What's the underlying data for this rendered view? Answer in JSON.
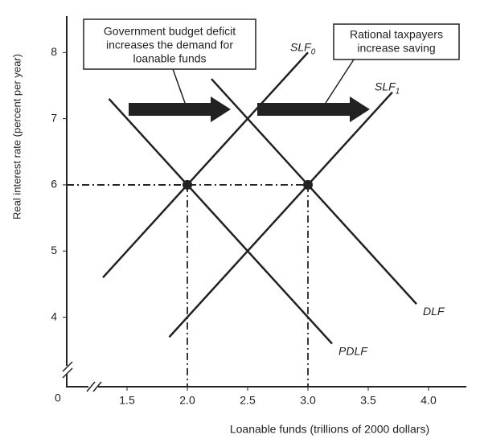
{
  "chart_data": {
    "type": "line",
    "xlabel": "Loanable funds (trillions of 2000 dollars)",
    "ylabel": "Real interest rate (percent per year)",
    "origin_label": "0",
    "xlim": [
      1,
      4.3
    ],
    "ylim": [
      2.95,
      8.55
    ],
    "xticks": [
      1.5,
      {
        "value": 2,
        "label": "2.0"
      },
      2.5,
      {
        "value": 3,
        "label": "3.0"
      },
      3.5,
      {
        "value": 4,
        "label": "4.0"
      }
    ],
    "yticks": [
      4,
      5,
      6,
      7,
      8
    ],
    "color": "#222222",
    "series": [
      {
        "name": "SLF",
        "subscript": "0",
        "x": [
          1.3,
          3.0
        ],
        "values": [
          4.6,
          8.0
        ]
      },
      {
        "name": "SLF",
        "subscript": "1",
        "x": [
          1.85,
          3.7
        ],
        "values": [
          3.7,
          7.4
        ]
      },
      {
        "name": "PDLF",
        "x": [
          1.35,
          3.2
        ],
        "values": [
          7.3,
          3.6
        ]
      },
      {
        "name": "DLF",
        "x": [
          2.2,
          3.9
        ],
        "values": [
          7.6,
          4.2
        ]
      }
    ],
    "points": {
      "x": [
        2,
        3
      ],
      "values": [
        6,
        6
      ]
    },
    "annotations": [
      {
        "lines": [
          "Government budget deficit",
          "increases the demand for",
          "loanable funds"
        ]
      },
      {
        "lines": [
          "Rational taxpayers",
          "increase saving"
        ]
      }
    ]
  }
}
